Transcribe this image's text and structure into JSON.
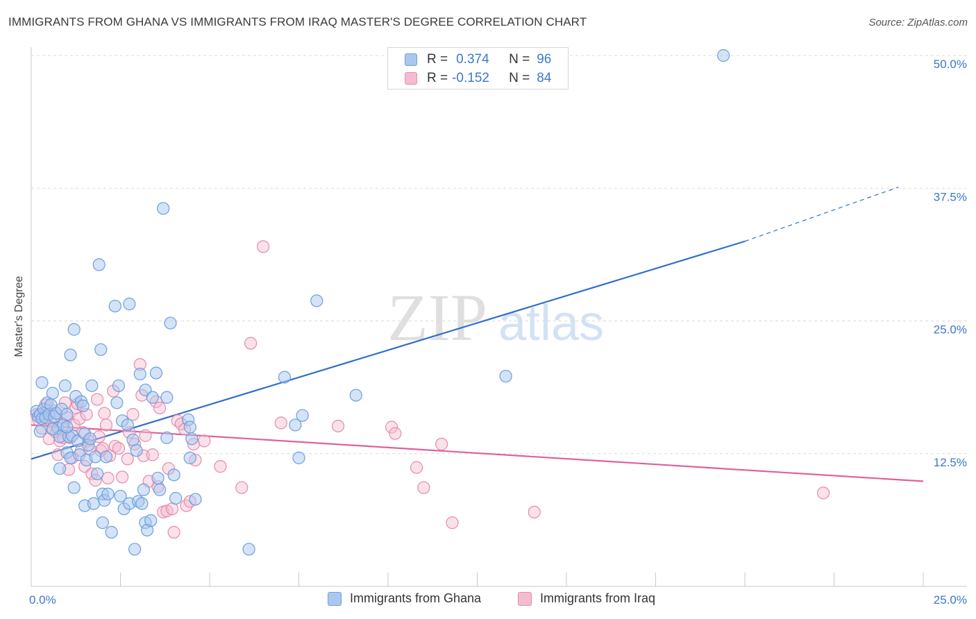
{
  "header": {
    "title": "IMMIGRANTS FROM GHANA VS IMMIGRANTS FROM IRAQ MASTER'S DEGREE CORRELATION CHART",
    "source": "Source: ZipAtlas.com"
  },
  "watermark": {
    "zip": "ZIP",
    "atlas": "atlas"
  },
  "legend": {
    "ghana": {
      "r_label": "R =",
      "r_value": "0.374",
      "n_label": "N =",
      "n_value": "96"
    },
    "iraq": {
      "r_label": "R =",
      "r_value": "-0.152",
      "n_label": "N =",
      "n_value": "84"
    }
  },
  "colors": {
    "ghana_fill": "#aac8ef",
    "ghana_stroke": "#6a9fdc",
    "ghana_line": "#2f6fcc",
    "iraq_fill": "#f5bcd0",
    "iraq_stroke": "#e58aac",
    "iraq_line": "#e0609a",
    "tick_text": "#3b78c9",
    "grid": "#d9d9d9"
  },
  "chart_data": {
    "type": "scatter",
    "title": "IMMIGRANTS FROM GHANA VS IMMIGRANTS FROM IRAQ MASTER'S DEGREE CORRELATION CHART",
    "xlabel": "",
    "ylabel": "Master's Degree",
    "xlim": [
      0,
      25
    ],
    "ylim": [
      0,
      50
    ],
    "x_tick_labels": [
      "0.0%",
      "25.0%"
    ],
    "y_ticks": [
      12.5,
      25.0,
      37.5,
      50.0
    ],
    "y_tick_labels": [
      "12.5%",
      "25.0%",
      "37.5%",
      "50.0%"
    ],
    "grid": true,
    "legend_position": "top-center",
    "series": [
      {
        "name": "Immigrants from Ghana",
        "r": 0.374,
        "n": 96,
        "trend": {
          "x0": 0,
          "y0": 12.0,
          "x1": 20,
          "y1": 32.5,
          "dashed_to_x": 24.3,
          "dashed_to_y": 37.6
        },
        "points": [
          [
            0.15,
            16.5
          ],
          [
            0.2,
            16.0
          ],
          [
            0.25,
            16.2
          ],
          [
            0.3,
            15.8
          ],
          [
            0.35,
            16.7
          ],
          [
            0.4,
            15.9
          ],
          [
            0.45,
            17.3
          ],
          [
            0.5,
            16.2
          ],
          [
            0.55,
            17.1
          ],
          [
            0.6,
            18.2
          ],
          [
            0.65,
            16.0
          ],
          [
            0.7,
            16.3
          ],
          [
            0.75,
            14.9
          ],
          [
            0.8,
            14.1
          ],
          [
            0.8,
            11.1
          ],
          [
            0.85,
            16.7
          ],
          [
            0.9,
            15.2
          ],
          [
            0.95,
            18.9
          ],
          [
            1.0,
            16.2
          ],
          [
            1.0,
            12.6
          ],
          [
            1.05,
            14.1
          ],
          [
            1.1,
            12.1
          ],
          [
            1.1,
            21.8
          ],
          [
            1.15,
            14.2
          ],
          [
            1.2,
            9.3
          ],
          [
            1.2,
            24.2
          ],
          [
            1.25,
            17.9
          ],
          [
            1.3,
            13.7
          ],
          [
            1.35,
            12.4
          ],
          [
            1.4,
            17.4
          ],
          [
            1.45,
            17.0
          ],
          [
            1.5,
            7.6
          ],
          [
            1.5,
            14.4
          ],
          [
            1.55,
            11.9
          ],
          [
            1.6,
            13.3
          ],
          [
            1.65,
            13.9
          ],
          [
            1.7,
            18.9
          ],
          [
            1.75,
            7.8
          ],
          [
            1.8,
            12.2
          ],
          [
            1.85,
            10.6
          ],
          [
            1.9,
            30.3
          ],
          [
            1.95,
            22.3
          ],
          [
            2.0,
            8.7
          ],
          [
            2.0,
            6.0
          ],
          [
            2.05,
            8.1
          ],
          [
            2.1,
            12.2
          ],
          [
            2.15,
            8.7
          ],
          [
            2.25,
            5.1
          ],
          [
            2.35,
            26.4
          ],
          [
            2.4,
            17.3
          ],
          [
            2.45,
            18.9
          ],
          [
            2.5,
            8.5
          ],
          [
            2.55,
            15.6
          ],
          [
            2.6,
            7.3
          ],
          [
            2.7,
            15.2
          ],
          [
            2.75,
            26.6
          ],
          [
            2.75,
            7.8
          ],
          [
            2.85,
            13.8
          ],
          [
            2.9,
            3.5
          ],
          [
            2.95,
            12.8
          ],
          [
            3.0,
            8.0
          ],
          [
            3.05,
            20.0
          ],
          [
            3.1,
            7.8
          ],
          [
            3.15,
            9.1
          ],
          [
            3.2,
            6.0
          ],
          [
            3.2,
            18.5
          ],
          [
            3.25,
            5.3
          ],
          [
            3.35,
            6.2
          ],
          [
            3.4,
            17.8
          ],
          [
            3.5,
            20.1
          ],
          [
            3.55,
            10.2
          ],
          [
            3.6,
            9.1
          ],
          [
            3.7,
            35.6
          ],
          [
            3.8,
            14.0
          ],
          [
            3.8,
            17.8
          ],
          [
            3.9,
            24.8
          ],
          [
            4.0,
            10.5
          ],
          [
            4.05,
            8.3
          ],
          [
            4.4,
            15.7
          ],
          [
            4.45,
            15.0
          ],
          [
            4.45,
            12.1
          ],
          [
            4.5,
            13.9
          ],
          [
            4.6,
            8.2
          ],
          [
            6.1,
            3.5
          ],
          [
            7.1,
            19.7
          ],
          [
            7.4,
            15.2
          ],
          [
            7.5,
            12.1
          ],
          [
            7.6,
            16.1
          ],
          [
            8.0,
            26.9
          ],
          [
            9.1,
            18.0
          ],
          [
            13.3,
            19.8
          ],
          [
            19.4,
            50.0
          ],
          [
            0.3,
            19.2
          ],
          [
            0.6,
            14.8
          ],
          [
            1.0,
            15.0
          ],
          [
            0.25,
            14.6
          ]
        ]
      },
      {
        "name": "Immigrants from Iraq",
        "r": -0.152,
        "n": 84,
        "trend": {
          "x0": 0,
          "y0": 15.2,
          "x1": 25,
          "y1": 9.9
        },
        "points": [
          [
            0.15,
            16.2
          ],
          [
            0.2,
            15.7
          ],
          [
            0.3,
            14.9
          ],
          [
            0.35,
            16.0
          ],
          [
            0.4,
            17.1
          ],
          [
            0.45,
            16.6
          ],
          [
            0.5,
            13.9
          ],
          [
            0.55,
            15.5
          ],
          [
            0.6,
            14.9
          ],
          [
            0.65,
            16.5
          ],
          [
            0.7,
            14.5
          ],
          [
            0.75,
            12.4
          ],
          [
            0.8,
            13.7
          ],
          [
            0.85,
            15.4
          ],
          [
            0.9,
            14.0
          ],
          [
            0.95,
            17.3
          ],
          [
            1.0,
            15.9
          ],
          [
            1.05,
            11.0
          ],
          [
            1.1,
            14.0
          ],
          [
            1.15,
            12.1
          ],
          [
            1.2,
            15.2
          ],
          [
            1.25,
            16.8
          ],
          [
            1.3,
            17.2
          ],
          [
            1.35,
            15.8
          ],
          [
            1.4,
            12.8
          ],
          [
            1.45,
            14.5
          ],
          [
            1.5,
            11.3
          ],
          [
            1.55,
            16.2
          ],
          [
            1.6,
            13.7
          ],
          [
            1.65,
            12.9
          ],
          [
            1.7,
            10.6
          ],
          [
            1.8,
            10.0
          ],
          [
            1.85,
            17.6
          ],
          [
            1.9,
            14.1
          ],
          [
            1.95,
            12.8
          ],
          [
            2.0,
            13.0
          ],
          [
            2.05,
            16.3
          ],
          [
            2.1,
            15.2
          ],
          [
            2.15,
            10.2
          ],
          [
            2.2,
            12.3
          ],
          [
            2.3,
            18.4
          ],
          [
            2.35,
            13.2
          ],
          [
            2.45,
            13.0
          ],
          [
            2.55,
            10.3
          ],
          [
            2.7,
            12.0
          ],
          [
            2.75,
            14.5
          ],
          [
            2.85,
            16.2
          ],
          [
            2.9,
            13.4
          ],
          [
            3.05,
            20.9
          ],
          [
            3.1,
            18.0
          ],
          [
            3.15,
            12.3
          ],
          [
            3.2,
            14.2
          ],
          [
            3.3,
            9.9
          ],
          [
            3.4,
            12.4
          ],
          [
            3.5,
            17.4
          ],
          [
            3.55,
            9.4
          ],
          [
            3.6,
            16.8
          ],
          [
            3.7,
            7.0
          ],
          [
            3.8,
            7.1
          ],
          [
            3.85,
            11.1
          ],
          [
            3.95,
            7.3
          ],
          [
            4.0,
            5.1
          ],
          [
            4.1,
            15.6
          ],
          [
            4.2,
            15.3
          ],
          [
            4.3,
            14.8
          ],
          [
            4.35,
            7.6
          ],
          [
            4.45,
            8.0
          ],
          [
            4.55,
            13.4
          ],
          [
            4.6,
            11.9
          ],
          [
            4.85,
            13.7
          ],
          [
            5.3,
            11.3
          ],
          [
            5.9,
            9.3
          ],
          [
            6.15,
            22.9
          ],
          [
            6.5,
            32.0
          ],
          [
            7.0,
            15.4
          ],
          [
            8.6,
            15.1
          ],
          [
            10.1,
            15.0
          ],
          [
            10.2,
            14.4
          ],
          [
            10.8,
            11.2
          ],
          [
            11.0,
            9.3
          ],
          [
            11.5,
            13.4
          ],
          [
            11.8,
            6.0
          ],
          [
            14.1,
            7.0
          ],
          [
            22.2,
            8.8
          ]
        ]
      }
    ]
  },
  "bottom_legend": {
    "ghana_label": "Immigrants from Ghana",
    "iraq_label": "Immigrants from Iraq"
  }
}
